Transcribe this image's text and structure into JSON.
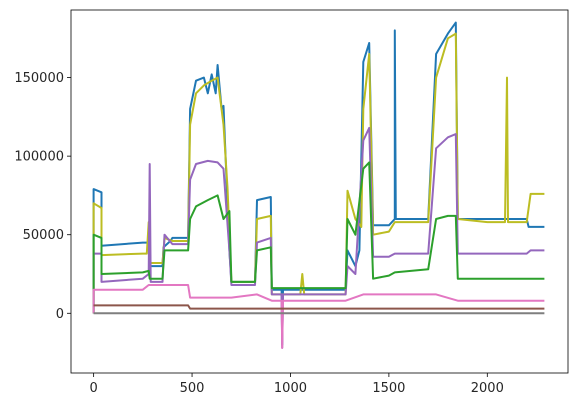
{
  "chart_data": {
    "type": "line",
    "title": "",
    "xlabel": "",
    "ylabel": "",
    "xlim": [
      -115,
      2410
    ],
    "ylim": [
      -38000,
      193000
    ],
    "x_ticks": [
      0,
      500,
      1000,
      1500,
      2000
    ],
    "x_tick_labels": [
      "0",
      "500",
      "1000",
      "1500",
      "2000"
    ],
    "y_ticks": [
      0,
      50000,
      100000,
      150000
    ],
    "y_tick_labels": [
      "0",
      "50000",
      "100000",
      "150000"
    ],
    "grid": false,
    "legend": "none",
    "series": [
      {
        "color": "#1f77b4",
        "points": [
          [
            0,
            0
          ],
          [
            0,
            79000
          ],
          [
            40,
            77000
          ],
          [
            40,
            43000
          ],
          [
            250,
            45000
          ],
          [
            280,
            45000
          ],
          [
            285,
            30000
          ],
          [
            350,
            30000
          ],
          [
            355,
            42000
          ],
          [
            390,
            46000
          ],
          [
            400,
            48000
          ],
          [
            480,
            48000
          ],
          [
            490,
            130000
          ],
          [
            520,
            148000
          ],
          [
            560,
            150000
          ],
          [
            580,
            140000
          ],
          [
            600,
            152000
          ],
          [
            620,
            140000
          ],
          [
            630,
            158000
          ],
          [
            650,
            130000
          ],
          [
            660,
            132000
          ],
          [
            690,
            40000
          ],
          [
            700,
            20000
          ],
          [
            820,
            20000
          ],
          [
            830,
            72000
          ],
          [
            900,
            74000
          ],
          [
            905,
            15000
          ],
          [
            955,
            15000
          ],
          [
            958,
            -20000
          ],
          [
            962,
            15000
          ],
          [
            1280,
            15000
          ],
          [
            1290,
            40000
          ],
          [
            1330,
            30000
          ],
          [
            1350,
            40000
          ],
          [
            1370,
            160000
          ],
          [
            1400,
            172000
          ],
          [
            1420,
            56000
          ],
          [
            1500,
            56000
          ],
          [
            1530,
            60000
          ],
          [
            1530,
            180000
          ],
          [
            1535,
            60000
          ],
          [
            1700,
            60000
          ],
          [
            1740,
            165000
          ],
          [
            1800,
            178000
          ],
          [
            1840,
            185000
          ],
          [
            1850,
            60000
          ],
          [
            2200,
            60000
          ],
          [
            2210,
            55000
          ],
          [
            2290,
            55000
          ]
        ]
      },
      {
        "color": "#bcbd22",
        "points": [
          [
            0,
            0
          ],
          [
            0,
            70000
          ],
          [
            40,
            67000
          ],
          [
            40,
            37000
          ],
          [
            250,
            38000
          ],
          [
            270,
            38000
          ],
          [
            280,
            58000
          ],
          [
            285,
            32000
          ],
          [
            350,
            32000
          ],
          [
            360,
            48000
          ],
          [
            400,
            46000
          ],
          [
            480,
            46000
          ],
          [
            490,
            120000
          ],
          [
            520,
            140000
          ],
          [
            560,
            145000
          ],
          [
            600,
            148000
          ],
          [
            630,
            150000
          ],
          [
            660,
            120000
          ],
          [
            680,
            80000
          ],
          [
            700,
            20000
          ],
          [
            820,
            20000
          ],
          [
            830,
            60000
          ],
          [
            900,
            62000
          ],
          [
            905,
            12000
          ],
          [
            1050,
            12000
          ],
          [
            1060,
            25000
          ],
          [
            1070,
            12000
          ],
          [
            1280,
            12000
          ],
          [
            1290,
            78000
          ],
          [
            1330,
            60000
          ],
          [
            1360,
            55000
          ],
          [
            1370,
            130000
          ],
          [
            1400,
            165000
          ],
          [
            1420,
            50000
          ],
          [
            1500,
            52000
          ],
          [
            1530,
            58000
          ],
          [
            1700,
            58000
          ],
          [
            1740,
            150000
          ],
          [
            1800,
            175000
          ],
          [
            1840,
            178000
          ],
          [
            1850,
            60000
          ],
          [
            2000,
            58000
          ],
          [
            2090,
            58000
          ],
          [
            2100,
            150000
          ],
          [
            2105,
            58000
          ],
          [
            2200,
            58000
          ],
          [
            2220,
            76000
          ],
          [
            2290,
            76000
          ]
        ]
      },
      {
        "color": "#9467bd",
        "points": [
          [
            0,
            0
          ],
          [
            0,
            38000
          ],
          [
            40,
            38000
          ],
          [
            40,
            20000
          ],
          [
            250,
            22000
          ],
          [
            280,
            25000
          ],
          [
            285,
            95000
          ],
          [
            290,
            20000
          ],
          [
            350,
            20000
          ],
          [
            360,
            50000
          ],
          [
            400,
            44000
          ],
          [
            480,
            44000
          ],
          [
            490,
            85000
          ],
          [
            520,
            95000
          ],
          [
            580,
            97000
          ],
          [
            630,
            96000
          ],
          [
            660,
            92000
          ],
          [
            690,
            40000
          ],
          [
            700,
            18000
          ],
          [
            820,
            18000
          ],
          [
            830,
            45000
          ],
          [
            900,
            48000
          ],
          [
            905,
            12000
          ],
          [
            955,
            12000
          ],
          [
            958,
            -22000
          ],
          [
            962,
            12000
          ],
          [
            1280,
            12000
          ],
          [
            1290,
            30000
          ],
          [
            1330,
            25000
          ],
          [
            1370,
            110000
          ],
          [
            1400,
            118000
          ],
          [
            1420,
            36000
          ],
          [
            1500,
            36000
          ],
          [
            1530,
            38000
          ],
          [
            1700,
            38000
          ],
          [
            1740,
            105000
          ],
          [
            1800,
            112000
          ],
          [
            1840,
            114000
          ],
          [
            1850,
            38000
          ],
          [
            2200,
            38000
          ],
          [
            2220,
            40000
          ],
          [
            2290,
            40000
          ]
        ]
      },
      {
        "color": "#2ca02c",
        "points": [
          [
            0,
            0
          ],
          [
            0,
            50000
          ],
          [
            40,
            48000
          ],
          [
            40,
            25000
          ],
          [
            250,
            26000
          ],
          [
            280,
            27000
          ],
          [
            285,
            22000
          ],
          [
            350,
            22000
          ],
          [
            360,
            40000
          ],
          [
            400,
            40000
          ],
          [
            480,
            40000
          ],
          [
            490,
            60000
          ],
          [
            520,
            68000
          ],
          [
            580,
            72000
          ],
          [
            630,
            75000
          ],
          [
            660,
            60000
          ],
          [
            690,
            65000
          ],
          [
            700,
            20000
          ],
          [
            820,
            20000
          ],
          [
            830,
            40000
          ],
          [
            900,
            42000
          ],
          [
            905,
            16000
          ],
          [
            1280,
            16000
          ],
          [
            1290,
            60000
          ],
          [
            1330,
            50000
          ],
          [
            1370,
            92000
          ],
          [
            1400,
            96000
          ],
          [
            1420,
            22000
          ],
          [
            1500,
            24000
          ],
          [
            1530,
            26000
          ],
          [
            1700,
            28000
          ],
          [
            1740,
            60000
          ],
          [
            1800,
            62000
          ],
          [
            1840,
            62000
          ],
          [
            1850,
            22000
          ],
          [
            2200,
            22000
          ],
          [
            2290,
            22000
          ]
        ]
      },
      {
        "color": "#e377c2",
        "points": [
          [
            0,
            0
          ],
          [
            0,
            15000
          ],
          [
            250,
            15000
          ],
          [
            280,
            18000
          ],
          [
            350,
            18000
          ],
          [
            480,
            18000
          ],
          [
            490,
            10000
          ],
          [
            700,
            10000
          ],
          [
            830,
            12000
          ],
          [
            905,
            8000
          ],
          [
            955,
            8000
          ],
          [
            958,
            -22000
          ],
          [
            962,
            8000
          ],
          [
            1280,
            8000
          ],
          [
            1370,
            12000
          ],
          [
            1500,
            12000
          ],
          [
            1740,
            12000
          ],
          [
            1850,
            8000
          ],
          [
            2200,
            8000
          ],
          [
            2290,
            8000
          ]
        ]
      },
      {
        "color": "#7f7f7f",
        "points": [
          [
            0,
            0
          ],
          [
            2290,
            0
          ]
        ]
      },
      {
        "color": "#8c564b",
        "points": [
          [
            0,
            5000
          ],
          [
            480,
            5000
          ],
          [
            490,
            3000
          ],
          [
            2290,
            3000
          ]
        ]
      }
    ]
  }
}
